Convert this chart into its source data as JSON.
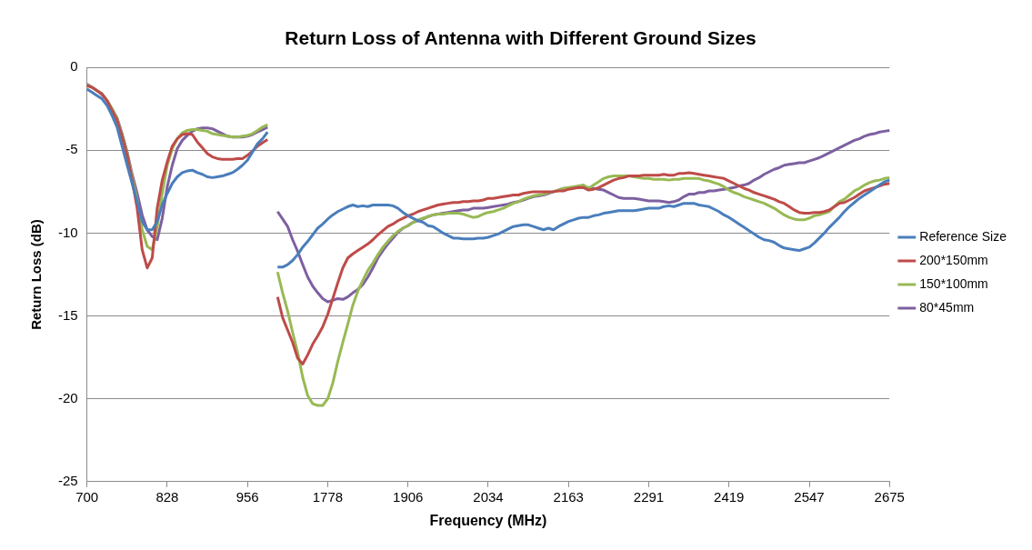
{
  "chart_data": {
    "type": "line",
    "title": "Return Loss of Antenna with Different Ground Sizes",
    "xlabel": "Frequency (MHz)",
    "ylabel": "Return Loss (dB)",
    "categories": [
      "700",
      null,
      null,
      null,
      null,
      null,
      null,
      null,
      null,
      null,
      null,
      null,
      null,
      null,
      null,
      null,
      "828",
      null,
      null,
      null,
      null,
      null,
      null,
      null,
      null,
      null,
      null,
      null,
      null,
      null,
      null,
      null,
      "956",
      null,
      null,
      null,
      null,
      null,
      null,
      null,
      null,
      null,
      null,
      null,
      null,
      null,
      null,
      null,
      "1778",
      null,
      null,
      null,
      null,
      null,
      null,
      null,
      null,
      null,
      null,
      null,
      null,
      null,
      null,
      null,
      "1906",
      null,
      null,
      null,
      null,
      null,
      null,
      null,
      null,
      null,
      null,
      null,
      null,
      null,
      null,
      null,
      "2034",
      null,
      null,
      null,
      null,
      null,
      null,
      null,
      null,
      null,
      null,
      null,
      null,
      null,
      null,
      null,
      "2163",
      null,
      null,
      null,
      null,
      null,
      null,
      null,
      null,
      null,
      null,
      null,
      null,
      null,
      null,
      null,
      "2291",
      null,
      null,
      null,
      null,
      null,
      null,
      null,
      null,
      null,
      null,
      null,
      null,
      null,
      null,
      null,
      "2419",
      null,
      null,
      null,
      null,
      null,
      null,
      null,
      null,
      null,
      null,
      null,
      null,
      null,
      null,
      null,
      "2547",
      null,
      null,
      null,
      null,
      null,
      null,
      null,
      null,
      null,
      null,
      null,
      null,
      null,
      null,
      null,
      "2675"
    ],
    "series": [
      {
        "name": "Reference Size",
        "color": "#4a7ebb",
        "values": [
          -1.3,
          -1.5,
          -1.7,
          -1.9,
          -2.3,
          -2.9,
          -3.6,
          -4.75,
          -5.9,
          -7.0,
          -8.1,
          -9.3,
          -9.8,
          -9.8,
          -9.3,
          -8.3,
          -7.6,
          -7.0,
          -6.6,
          -6.35,
          -6.25,
          -6.2,
          -6.35,
          -6.45,
          -6.6,
          -6.65,
          -6.6,
          -6.55,
          -6.45,
          -6.35,
          -6.15,
          -5.9,
          -5.6,
          -5.1,
          -4.6,
          -4.3,
          -3.9,
          null,
          -12.05,
          -12.05,
          -11.9,
          -11.65,
          -11.3,
          -10.85,
          -10.5,
          -10.1,
          -9.7,
          -9.45,
          -9.15,
          -8.9,
          -8.7,
          -8.55,
          -8.4,
          -8.3,
          -8.4,
          -8.35,
          -8.4,
          -8.3,
          -8.3,
          -8.3,
          -8.3,
          -8.35,
          -8.5,
          -8.75,
          -8.95,
          -9.1,
          -9.25,
          -9.35,
          -9.55,
          -9.6,
          -9.8,
          -10.0,
          -10.15,
          -10.3,
          -10.3,
          -10.35,
          -10.35,
          -10.35,
          -10.3,
          -10.3,
          -10.25,
          -10.15,
          -10.05,
          -9.9,
          -9.75,
          -9.6,
          -9.55,
          -9.5,
          -9.5,
          -9.6,
          -9.7,
          -9.8,
          -9.7,
          -9.8,
          -9.6,
          -9.45,
          -9.3,
          -9.2,
          -9.1,
          -9.05,
          -9.05,
          -8.95,
          -8.9,
          -8.8,
          -8.75,
          -8.7,
          -8.65,
          -8.65,
          -8.65,
          -8.65,
          -8.6,
          -8.55,
          -8.5,
          -8.5,
          -8.5,
          -8.4,
          -8.35,
          -8.4,
          -8.3,
          -8.2,
          -8.2,
          -8.2,
          -8.3,
          -8.35,
          -8.4,
          -8.55,
          -8.7,
          -8.9,
          -9.05,
          -9.25,
          -9.45,
          -9.65,
          -9.85,
          -10.05,
          -10.25,
          -10.4,
          -10.45,
          -10.55,
          -10.75,
          -10.9,
          -10.95,
          -11.0,
          -11.05,
          -10.95,
          -10.85,
          -10.6,
          -10.3,
          -10.0,
          -9.65,
          -9.35,
          -9.05,
          -8.7,
          -8.4,
          -8.15,
          -7.9,
          -7.7,
          -7.5,
          -7.3,
          -7.1,
          -6.9,
          -6.8
        ]
      },
      {
        "name": "200*150mm",
        "color": "#be4b48",
        "values": [
          -1.1,
          -1.2,
          -1.4,
          -1.6,
          -2.0,
          -2.6,
          -3.2,
          -4.2,
          -5.3,
          -6.8,
          -8.5,
          -11.0,
          -12.1,
          -11.5,
          -8.5,
          -6.8,
          -5.7,
          -4.75,
          -4.3,
          -4.05,
          -4.0,
          -4.05,
          -4.5,
          -4.85,
          -5.2,
          -5.4,
          -5.5,
          -5.55,
          -5.55,
          -5.55,
          -5.5,
          -5.5,
          -5.3,
          -5.05,
          -4.75,
          -4.55,
          -4.35,
          null,
          -13.85,
          -15.1,
          -15.85,
          -16.6,
          -17.55,
          -17.9,
          -17.35,
          -16.7,
          -16.2,
          -15.65,
          -14.9,
          -13.95,
          -13.0,
          -12.1,
          -11.5,
          -11.25,
          -11.05,
          -10.85,
          -10.65,
          -10.4,
          -10.1,
          -9.85,
          -9.6,
          -9.45,
          -9.25,
          -9.1,
          -8.95,
          -8.85,
          -8.7,
          -8.6,
          -8.5,
          -8.4,
          -8.3,
          -8.25,
          -8.2,
          -8.15,
          -8.15,
          -8.1,
          -8.1,
          -8.05,
          -8.05,
          -8.0,
          -7.9,
          -7.9,
          -7.85,
          -7.8,
          -7.75,
          -7.7,
          -7.7,
          -7.6,
          -7.55,
          -7.5,
          -7.5,
          -7.5,
          -7.5,
          -7.5,
          -7.45,
          -7.45,
          -7.35,
          -7.3,
          -7.25,
          -7.25,
          -7.4,
          -7.35,
          -7.25,
          -7.1,
          -6.95,
          -6.8,
          -6.7,
          -6.65,
          -6.55,
          -6.55,
          -6.55,
          -6.5,
          -6.5,
          -6.5,
          -6.5,
          -6.45,
          -6.5,
          -6.5,
          -6.4,
          -6.4,
          -6.35,
          -6.4,
          -6.45,
          -6.5,
          -6.55,
          -6.6,
          -6.65,
          -6.7,
          -6.85,
          -7.0,
          -7.15,
          -7.3,
          -7.4,
          -7.55,
          -7.65,
          -7.75,
          -7.85,
          -7.95,
          -8.1,
          -8.2,
          -8.4,
          -8.6,
          -8.75,
          -8.8,
          -8.8,
          -8.75,
          -8.75,
          -8.7,
          -8.6,
          -8.4,
          -8.2,
          -8.15,
          -8.0,
          -7.85,
          -7.65,
          -7.45,
          -7.35,
          -7.25,
          -7.15,
          -7.05,
          -7.0
        ]
      },
      {
        "name": "150*100mm",
        "color": "#98b954",
        "values": [
          -1.05,
          -1.2,
          -1.4,
          -1.6,
          -2.0,
          -2.5,
          -3.1,
          -4.1,
          -5.2,
          -6.6,
          -8.0,
          -9.8,
          -10.8,
          -11.0,
          -9.65,
          -7.6,
          -5.9,
          -4.9,
          -4.3,
          -3.95,
          -3.8,
          -3.75,
          -3.75,
          -3.8,
          -3.85,
          -4.0,
          -4.05,
          -4.1,
          -4.15,
          -4.2,
          -4.2,
          -4.15,
          -4.1,
          -4.0,
          -3.8,
          -3.6,
          -3.45,
          null,
          -12.35,
          -13.6,
          -14.7,
          -16.0,
          -17.2,
          -18.7,
          -19.8,
          -20.3,
          -20.4,
          -20.4,
          -20.0,
          -19.05,
          -17.75,
          -16.6,
          -15.5,
          -14.35,
          -13.5,
          -12.85,
          -12.25,
          -11.8,
          -11.3,
          -10.85,
          -10.5,
          -10.15,
          -9.9,
          -9.7,
          -9.55,
          -9.35,
          -9.2,
          -9.1,
          -9.0,
          -8.9,
          -8.85,
          -8.85,
          -8.8,
          -8.8,
          -8.8,
          -8.85,
          -8.95,
          -9.05,
          -9.0,
          -8.85,
          -8.75,
          -8.7,
          -8.6,
          -8.5,
          -8.35,
          -8.2,
          -8.1,
          -7.95,
          -7.85,
          -7.75,
          -7.7,
          -7.65,
          -7.55,
          -7.5,
          -7.4,
          -7.3,
          -7.25,
          -7.2,
          -7.15,
          -7.1,
          -7.3,
          -7.1,
          -6.9,
          -6.7,
          -6.6,
          -6.55,
          -6.55,
          -6.55,
          -6.55,
          -6.6,
          -6.65,
          -6.7,
          -6.7,
          -6.75,
          -6.75,
          -6.75,
          -6.8,
          -6.75,
          -6.75,
          -6.7,
          -6.7,
          -6.7,
          -6.7,
          -6.8,
          -6.85,
          -6.95,
          -7.05,
          -7.2,
          -7.4,
          -7.55,
          -7.65,
          -7.8,
          -7.9,
          -8.0,
          -8.1,
          -8.2,
          -8.35,
          -8.5,
          -8.7,
          -8.9,
          -9.05,
          -9.15,
          -9.2,
          -9.2,
          -9.1,
          -8.95,
          -8.9,
          -8.8,
          -8.7,
          -8.4,
          -8.1,
          -7.95,
          -7.7,
          -7.45,
          -7.3,
          -7.1,
          -6.95,
          -6.85,
          -6.8,
          -6.7,
          -6.65
        ]
      },
      {
        "name": "80*45mm",
        "color": "#7d60a0",
        "values": [
          -1.0,
          -1.2,
          -1.4,
          -1.65,
          -2.0,
          -2.5,
          -3.05,
          -4.0,
          -5.1,
          -6.45,
          -7.6,
          -8.9,
          -9.8,
          -10.2,
          -10.4,
          -9.1,
          -7.2,
          -5.9,
          -4.9,
          -4.4,
          -4.1,
          -3.85,
          -3.7,
          -3.65,
          -3.65,
          -3.7,
          -3.85,
          -4.0,
          -4.15,
          -4.2,
          -4.2,
          -4.2,
          -4.15,
          -4.05,
          -3.9,
          -3.75,
          -3.6,
          null,
          -8.7,
          -9.15,
          -9.6,
          -10.4,
          -11.1,
          -11.9,
          -12.65,
          -13.2,
          -13.6,
          -13.95,
          -14.15,
          -14.05,
          -13.95,
          -14.0,
          -13.85,
          -13.6,
          -13.4,
          -13.1,
          -12.65,
          -12.1,
          -11.5,
          -11.05,
          -10.65,
          -10.3,
          -9.95,
          -9.7,
          -9.55,
          -9.35,
          -9.25,
          -9.15,
          -9.0,
          -8.9,
          -8.85,
          -8.8,
          -8.75,
          -8.7,
          -8.65,
          -8.6,
          -8.6,
          -8.5,
          -8.5,
          -8.5,
          -8.45,
          -8.4,
          -8.35,
          -8.3,
          -8.25,
          -8.15,
          -8.1,
          -8.0,
          -7.9,
          -7.8,
          -7.75,
          -7.7,
          -7.6,
          -7.5,
          -7.4,
          -7.3,
          -7.3,
          -7.25,
          -7.25,
          -7.25,
          -7.25,
          -7.3,
          -7.35,
          -7.4,
          -7.55,
          -7.7,
          -7.85,
          -7.9,
          -7.9,
          -7.9,
          -7.95,
          -8.0,
          -8.05,
          -8.05,
          -8.05,
          -8.1,
          -8.15,
          -8.1,
          -8.0,
          -7.8,
          -7.65,
          -7.65,
          -7.55,
          -7.55,
          -7.45,
          -7.45,
          -7.4,
          -7.35,
          -7.3,
          -7.25,
          -7.15,
          -7.1,
          -7.0,
          -6.8,
          -6.65,
          -6.45,
          -6.3,
          -6.15,
          -6.05,
          -5.9,
          -5.85,
          -5.8,
          -5.75,
          -5.75,
          -5.65,
          -5.55,
          -5.45,
          -5.3,
          -5.15,
          -5.0,
          -4.85,
          -4.7,
          -4.55,
          -4.4,
          -4.3,
          -4.15,
          -4.05,
          -4.0,
          -3.9,
          -3.85,
          -3.8
        ]
      }
    ],
    "ylim": [
      -25,
      0
    ],
    "yticks": [
      -25,
      -20,
      -15,
      -10,
      -5,
      0
    ],
    "grid": "y",
    "legend": "right",
    "marker": "none"
  }
}
